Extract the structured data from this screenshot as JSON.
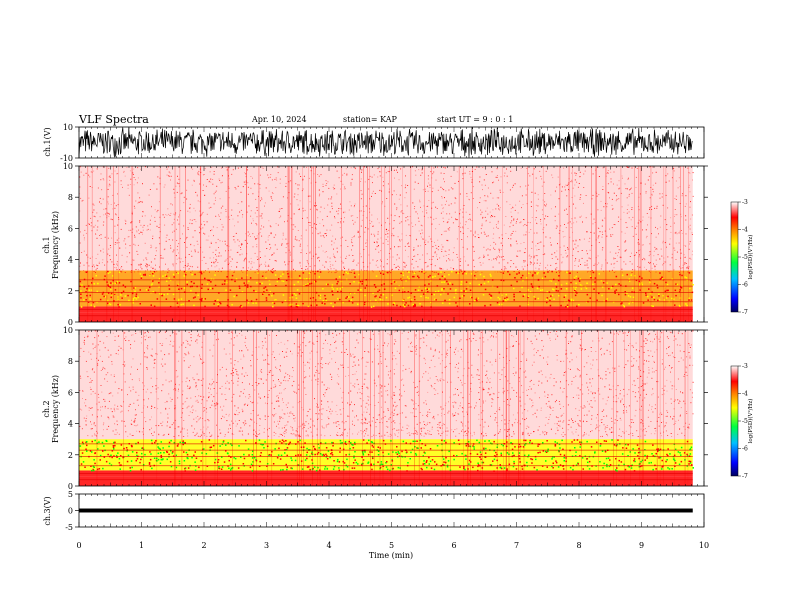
{
  "header": {
    "title": "VLF Spectra",
    "date": "Apr. 10, 2024",
    "station": "station= KAP",
    "start": "start  UT =   9 : 0  : 1"
  },
  "chart_data": [
    {
      "type": "line",
      "name": "ch1-waveform",
      "ylabel": "ch.1(V)",
      "ylim": [
        -10,
        10
      ],
      "yticks": [
        "10",
        "-10"
      ],
      "xlim": [
        0,
        10
      ]
    },
    {
      "type": "heatmap",
      "name": "ch1-spectrogram",
      "ylabel_line1": "ch.1",
      "ylabel_line2": "Frequency  (kHz)",
      "ylim": [
        0,
        10
      ],
      "yticks": [
        "0",
        "2",
        "4",
        "6",
        "8",
        "10"
      ],
      "xlim": [
        0,
        10
      ],
      "data_end_min": 9.82,
      "colorbar": {
        "label": "log(PSD)(V²/Hz)",
        "range": [
          -7,
          -3
        ],
        "ticks": [
          "-3",
          "-4",
          "-5",
          "-6",
          "-7"
        ]
      },
      "bands": [
        {
          "from_khz": 0,
          "to_khz": 0.6,
          "level": -3.6
        },
        {
          "from_khz": 0.6,
          "to_khz": 1.0,
          "level": -3.9
        },
        {
          "from_khz": 1.0,
          "to_khz": 3.3,
          "level": -4.3
        },
        {
          "from_khz": 3.3,
          "to_khz": 10,
          "level": -3.4
        }
      ]
    },
    {
      "type": "heatmap",
      "name": "ch2-spectrogram",
      "ylabel_line1": "ch.2",
      "ylabel_line2": "Frequency  (kHz)",
      "ylim": [
        0,
        10
      ],
      "yticks": [
        "0",
        "2",
        "4",
        "6",
        "8",
        "10"
      ],
      "xlim": [
        0,
        10
      ],
      "data_end_min": 9.82,
      "colorbar": {
        "label": "log(PSD)(V²/Hz)",
        "range": [
          -7,
          -3
        ],
        "ticks": [
          "-3",
          "-4",
          "-5",
          "-6",
          "-7"
        ]
      },
      "bands": [
        {
          "from_khz": 0,
          "to_khz": 0.6,
          "level": -3.6
        },
        {
          "from_khz": 0.6,
          "to_khz": 1.0,
          "level": -4.0
        },
        {
          "from_khz": 1.0,
          "to_khz": 3.0,
          "level": -4.9
        },
        {
          "from_khz": 3.0,
          "to_khz": 10,
          "level": -3.4
        }
      ]
    },
    {
      "type": "line",
      "name": "ch3-waveform",
      "ylabel": "ch.3(V)",
      "ylim": [
        -5,
        5
      ],
      "yticks": [
        "5",
        "0",
        "-5"
      ],
      "trace_band": [
        -0.6,
        0.6
      ],
      "xlim": [
        0,
        10
      ]
    }
  ],
  "xaxis": {
    "label": "Time  (min)",
    "ticks": [
      "0",
      "1",
      "2",
      "3",
      "4",
      "5",
      "6",
      "7",
      "8",
      "9",
      "10"
    ],
    "range": [
      0,
      10
    ]
  },
  "colors": {
    "trace": "#000000",
    "scale_red": "#ff0000",
    "scale_yellow": "#ffff00",
    "scale_green": "#00ff00",
    "scale_blue": "#0000ff"
  }
}
